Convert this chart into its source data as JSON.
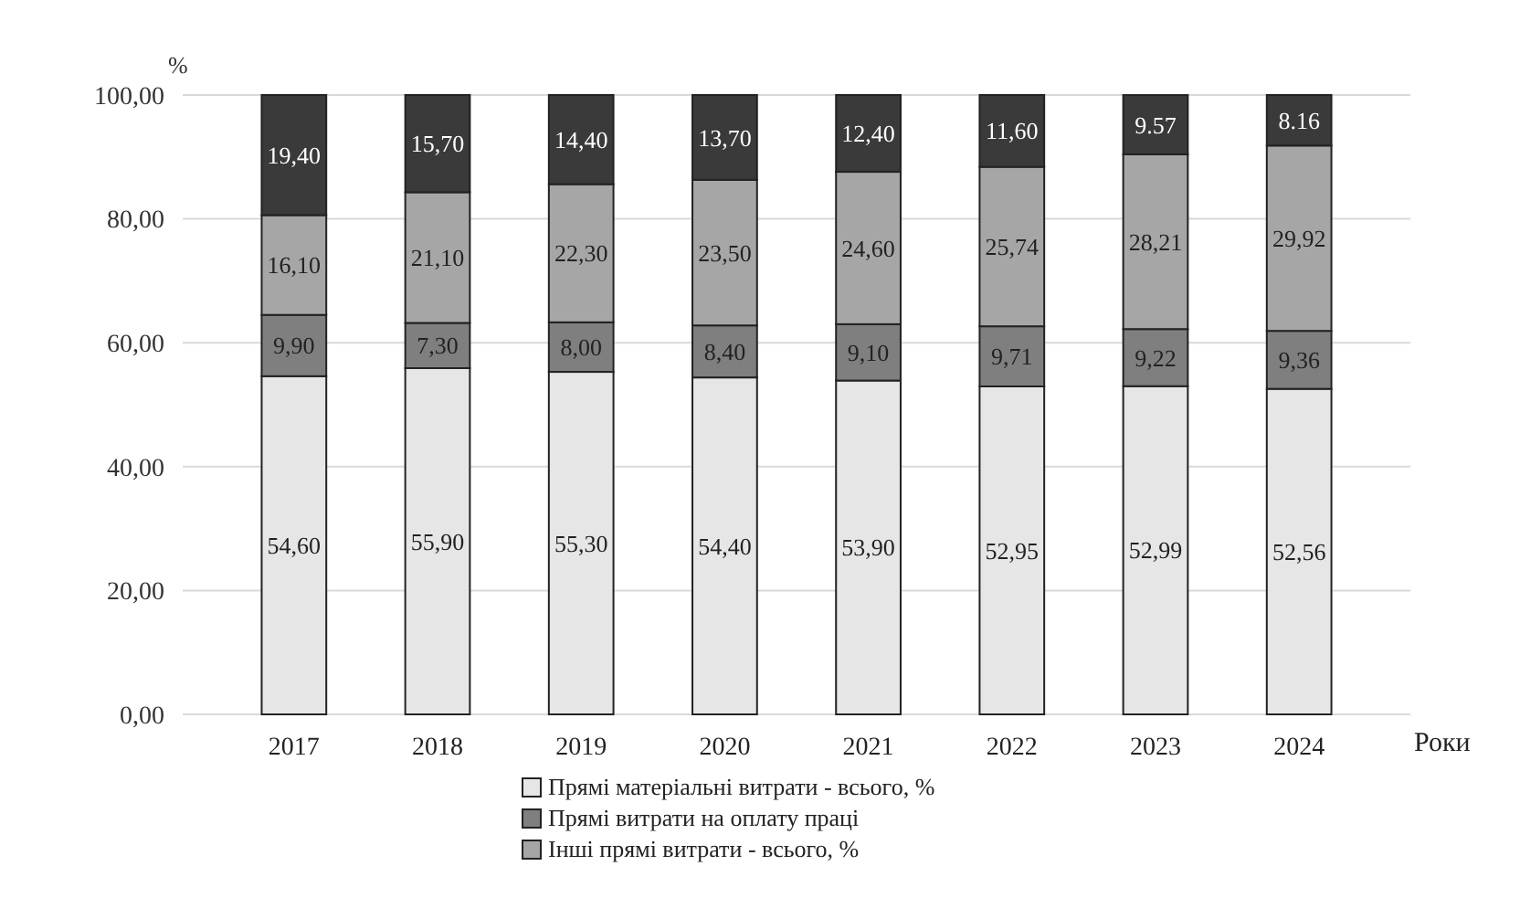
{
  "chart_data": {
    "type": "bar",
    "stacked": true,
    "ylabel": "%",
    "xlabel": "Роки",
    "categories": [
      "2017",
      "2018",
      "2019",
      "2020",
      "2021",
      "2022",
      "2023",
      "2024"
    ],
    "series": [
      {
        "name": "Прямі матеріальні витрати - всього, %",
        "color": "#e6e6e6",
        "values": [
          54.6,
          55.9,
          55.3,
          54.4,
          53.9,
          52.95,
          52.99,
          52.56
        ],
        "value_labels": [
          "54,60",
          "55,90",
          "55,30",
          "54,40",
          "53,90",
          "52,95",
          "52,99",
          "52,56"
        ]
      },
      {
        "name": "Прямі витрати на оплату праці",
        "color": "#7f7f7f",
        "values": [
          9.9,
          7.3,
          8.0,
          8.4,
          9.1,
          9.71,
          9.22,
          9.36
        ],
        "value_labels": [
          "9,90",
          "7,30",
          "8,00",
          "8,40",
          "9,10",
          "9,71",
          "9,22",
          "9,36"
        ]
      },
      {
        "name": "Інші прямі витрати - всього, %",
        "color": "#a6a6a6",
        "values": [
          16.1,
          21.1,
          22.3,
          23.5,
          24.6,
          25.74,
          28.21,
          29.92
        ],
        "value_labels": [
          "16,10",
          "21,10",
          "22,30",
          "23,50",
          "24,60",
          "25,74",
          "28,21",
          "29,92"
        ]
      },
      {
        "color": "#3a3a3a",
        "values": [
          19.4,
          15.7,
          14.4,
          13.7,
          12.4,
          11.6,
          9.57,
          8.16
        ],
        "value_labels": [
          "19,40",
          "15,70",
          "14,40",
          "13,70",
          "12,40",
          "11,60",
          "9.57",
          "8.16"
        ]
      }
    ],
    "ylim": [
      0,
      100
    ],
    "yticks": [
      {
        "value": 0,
        "label": "0,00"
      },
      {
        "value": 20,
        "label": "20,00"
      },
      {
        "value": 40,
        "label": "40,00"
      },
      {
        "value": 60,
        "label": "60,00"
      },
      {
        "value": 80,
        "label": "80,00"
      },
      {
        "value": 100,
        "label": "100,00"
      }
    ],
    "grid": "y",
    "legend": "bottom"
  }
}
